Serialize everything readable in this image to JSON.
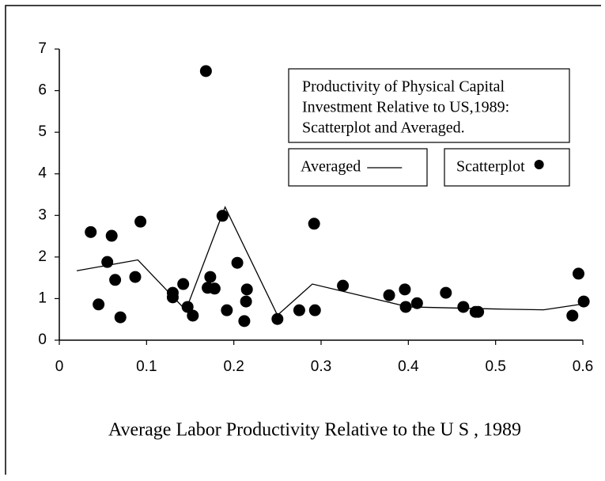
{
  "chart_data": {
    "type": "scatter",
    "title": [
      "Productivity of Physical Capital",
      "Investment Relative to US,1989:",
      "Scatterplot and Averaged."
    ],
    "x_label": "Average Labor Productivity Relative to the U S , 1989",
    "xlim": [
      0,
      0.6
    ],
    "ylim": [
      0,
      7
    ],
    "xticks": [
      0,
      0.1,
      0.2,
      0.3,
      0.4,
      0.5,
      0.6
    ],
    "yticks": [
      0,
      1,
      2,
      3,
      4,
      5,
      6,
      7
    ],
    "series": [
      {
        "name": "Averaged",
        "type": "line",
        "color": "#000000",
        "x": [
          0.02,
          0.09,
          0.13,
          0.145,
          0.19,
          0.25,
          0.29,
          0.4,
          0.5,
          0.555,
          0.6
        ],
        "values": [
          1.67,
          1.93,
          1.05,
          0.72,
          3.2,
          0.6,
          1.35,
          0.8,
          0.75,
          0.73,
          0.87
        ]
      },
      {
        "name": "Scatterplot",
        "type": "scatter",
        "color": "#000000",
        "x": [
          0.036,
          0.045,
          0.055,
          0.06,
          0.064,
          0.07,
          0.087,
          0.093,
          0.13,
          0.13,
          0.142,
          0.147,
          0.153,
          0.168,
          0.17,
          0.173,
          0.178,
          0.187,
          0.192,
          0.204,
          0.212,
          0.214,
          0.215,
          0.25,
          0.275,
          0.293,
          0.292,
          0.325,
          0.378,
          0.396,
          0.397,
          0.41,
          0.443,
          0.463,
          0.477,
          0.48,
          0.588,
          0.595,
          0.601
        ],
        "values": [
          2.6,
          0.86,
          1.88,
          2.51,
          1.45,
          0.55,
          1.52,
          2.85,
          1.14,
          1.03,
          1.35,
          0.8,
          0.59,
          6.47,
          1.26,
          1.52,
          1.24,
          2.99,
          0.72,
          1.86,
          0.46,
          0.93,
          1.22,
          0.51,
          0.72,
          0.72,
          2.8,
          1.31,
          1.08,
          1.22,
          0.8,
          0.89,
          1.14,
          0.8,
          0.68,
          0.68,
          0.59,
          1.6,
          0.93
        ]
      }
    ]
  }
}
